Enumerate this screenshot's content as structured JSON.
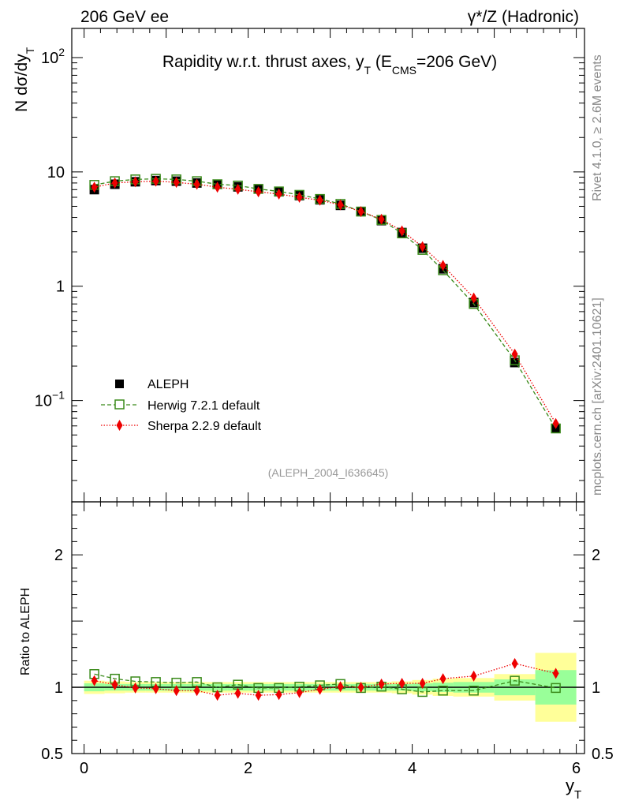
{
  "header": {
    "left": "206 GeV ee",
    "right": "γ*/Z (Hadronic)"
  },
  "side_labels": {
    "rivet": "Rivet 4.1.0, ≥ 2.6M events",
    "mcplots": "mcplots.cern.ch [arXiv:2401.10621]"
  },
  "chart_data": [
    {
      "type": "scatter",
      "panel": "main",
      "title": "Rapidity w.r.t. thrust axes, y_T (E_CMS=206 GeV)",
      "title_parts": {
        "main": "Rapidity w.r.t. thrust axes, y",
        "sub1": "T",
        "mid": " (E",
        "sub2": "CMS",
        "tail": "=206 GeV)"
      },
      "ylabel": "N  dσ/dy_T",
      "ylabel_parts": {
        "main": "N  dσ/dy",
        "sub": "T"
      },
      "xlabel": "y_T",
      "xlabel_parts": {
        "main": "y",
        "sub": "T"
      },
      "yscale": "log",
      "xlim": [
        -0.15,
        6.1
      ],
      "ylim": [
        0.013,
        180
      ],
      "yticks": [
        {
          "value": 0.1,
          "base": "10",
          "exp": "−1"
        },
        {
          "value": 1,
          "base": "1",
          "exp": ""
        },
        {
          "value": 10,
          "base": "10",
          "exp": ""
        },
        {
          "value": 100,
          "base": "10",
          "exp": "2"
        }
      ],
      "watermark": "(ALEPH_2004_I636645)",
      "legend_position": "lower-left",
      "x": [
        0.125,
        0.375,
        0.625,
        0.875,
        1.125,
        1.375,
        1.625,
        1.875,
        2.125,
        2.375,
        2.625,
        2.875,
        3.125,
        3.375,
        3.625,
        3.875,
        4.125,
        4.375,
        4.75,
        5.25,
        5.75
      ],
      "series": [
        {
          "name": "ALEPH",
          "marker": "filled-square",
          "color": "#000000",
          "values": [
            7.0,
            7.8,
            8.2,
            8.4,
            8.3,
            8.0,
            7.8,
            7.4,
            7.1,
            6.7,
            6.2,
            5.7,
            5.1,
            4.5,
            3.75,
            2.95,
            2.15,
            1.42,
            0.72,
            0.215,
            0.057
          ]
        },
        {
          "name": "Herwig 7.2.1 default",
          "marker": "open-square",
          "color": "#3a8a1a",
          "values": [
            7.7,
            8.3,
            8.6,
            8.7,
            8.6,
            8.3,
            7.8,
            7.6,
            7.1,
            6.75,
            6.3,
            5.8,
            5.25,
            4.5,
            3.8,
            2.9,
            2.08,
            1.38,
            0.7,
            0.225,
            0.057
          ]
        },
        {
          "name": "Sherpa 2.2.9 default",
          "marker": "filled-diamond",
          "color": "#ee0000",
          "values": [
            7.35,
            8.0,
            8.2,
            8.3,
            8.1,
            7.8,
            7.35,
            7.05,
            6.7,
            6.4,
            6.0,
            5.65,
            5.15,
            4.5,
            3.85,
            3.05,
            2.22,
            1.52,
            0.79,
            0.255,
            0.063
          ]
        }
      ]
    },
    {
      "type": "scatter",
      "panel": "ratio",
      "ylabel": "Ratio to ALEPH",
      "xlim": [
        -0.15,
        6.1
      ],
      "ylim": [
        0.5,
        2.4
      ],
      "ypositions_note": "linear ratio axis",
      "yticks": [
        {
          "value": 0.5,
          "label": "0.5"
        },
        {
          "value": 1,
          "label": "1"
        },
        {
          "value": 2,
          "label": "2"
        }
      ],
      "xticks": [
        {
          "value": 0,
          "label": "0"
        },
        {
          "value": 2,
          "label": "2"
        },
        {
          "value": 4,
          "label": "4"
        },
        {
          "value": 6,
          "label": "6"
        }
      ],
      "bands": {
        "bin_edges": [
          0,
          0.25,
          0.5,
          0.75,
          1.0,
          1.25,
          1.5,
          1.75,
          2.0,
          2.25,
          2.5,
          2.75,
          3.0,
          3.25,
          3.5,
          3.75,
          4.0,
          4.25,
          4.5,
          5.0,
          5.5,
          6.0
        ],
        "inner_half_width": [
          0.03,
          0.025,
          0.025,
          0.025,
          0.025,
          0.025,
          0.025,
          0.025,
          0.025,
          0.025,
          0.025,
          0.025,
          0.025,
          0.025,
          0.025,
          0.025,
          0.03,
          0.035,
          0.04,
          0.06,
          0.13
        ],
        "outer_half_width": [
          0.05,
          0.045,
          0.04,
          0.04,
          0.04,
          0.04,
          0.04,
          0.04,
          0.04,
          0.04,
          0.04,
          0.04,
          0.04,
          0.04,
          0.04,
          0.045,
          0.055,
          0.065,
          0.07,
          0.1,
          0.26
        ],
        "inner_color": "#99ff99",
        "outer_color": "#ffff99"
      },
      "x": [
        0.125,
        0.375,
        0.625,
        0.875,
        1.125,
        1.375,
        1.625,
        1.875,
        2.125,
        2.375,
        2.625,
        2.875,
        3.125,
        3.375,
        3.625,
        3.875,
        4.125,
        4.375,
        4.75,
        5.25,
        5.75
      ],
      "series": [
        {
          "name": "Herwig 7.2.1 default",
          "marker": "open-square",
          "color": "#3a8a1a",
          "values": [
            1.1,
            1.065,
            1.045,
            1.04,
            1.035,
            1.04,
            1.0,
            1.02,
            0.995,
            0.995,
            1.005,
            1.015,
            1.025,
            0.995,
            1.005,
            0.985,
            0.965,
            0.975,
            0.975,
            1.05,
            0.995
          ]
        },
        {
          "name": "Sherpa 2.2.9 default",
          "marker": "filled-diamond",
          "color": "#ee0000",
          "values": [
            1.05,
            1.02,
            0.995,
            0.99,
            0.975,
            0.975,
            0.94,
            0.955,
            0.94,
            0.945,
            0.96,
            0.985,
            1.005,
            1.0,
            1.025,
            1.03,
            1.03,
            1.065,
            1.085,
            1.18,
            1.105
          ]
        }
      ]
    }
  ]
}
